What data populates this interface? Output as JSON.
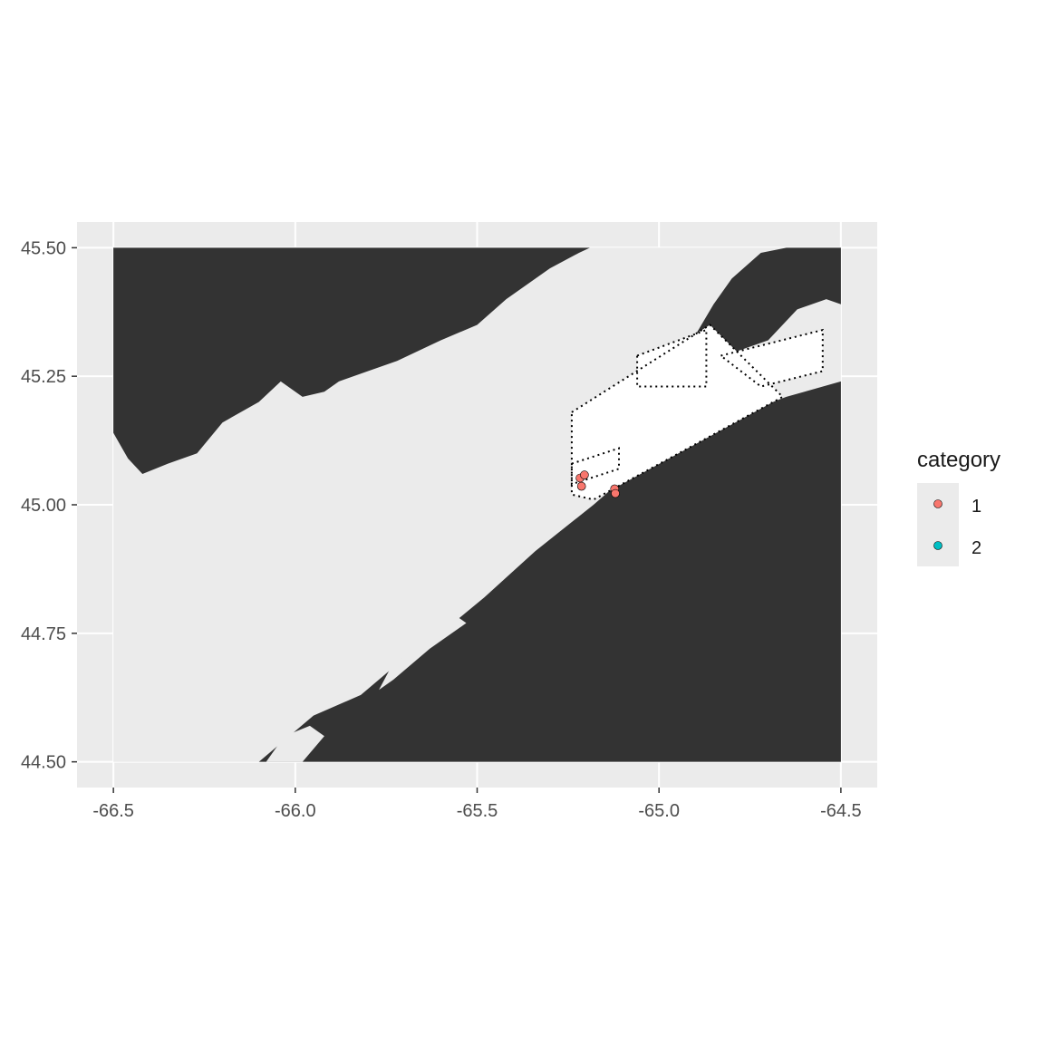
{
  "chart_data": {
    "type": "scatter",
    "subtype": "map",
    "title": "",
    "xlabel": "",
    "ylabel": "",
    "x_ticks": [
      -66.5,
      -66.0,
      -65.5,
      -65.0,
      -64.5
    ],
    "x_tick_labels": [
      "-66.5",
      "-66.0",
      "-65.5",
      "-65.0",
      "-64.5"
    ],
    "y_ticks": [
      44.5,
      44.75,
      45.0,
      45.25,
      45.5
    ],
    "y_tick_labels": [
      "44.50",
      "44.75",
      "45.00",
      "45.25",
      "45.50"
    ],
    "xlim": [
      -66.6,
      -64.4
    ],
    "ylim": [
      44.45,
      45.55
    ],
    "map_extent": {
      "lon": [
        -66.5,
        -64.5
      ],
      "lat": [
        44.5,
        45.5
      ]
    },
    "grid": true,
    "colors": {
      "panel_bg": "#ebebeb",
      "gridline": "#ffffff",
      "land": "#333333",
      "water": "#ebebeb",
      "zone_fill": "#ffffff",
      "zone_border": "#000000",
      "category_1": "#f8766d",
      "category_2": "#00bfc4"
    },
    "land_polygons": [
      {
        "name": "new-brunswick-coast",
        "coords": [
          [
            -66.5,
            45.5
          ],
          [
            -65.19,
            45.5
          ],
          [
            -65.22,
            45.49
          ],
          [
            -65.3,
            45.46
          ],
          [
            -65.42,
            45.4
          ],
          [
            -65.5,
            45.35
          ],
          [
            -65.6,
            45.32
          ],
          [
            -65.72,
            45.28
          ],
          [
            -65.8,
            45.26
          ],
          [
            -65.88,
            45.24
          ],
          [
            -65.92,
            45.22
          ],
          [
            -65.98,
            45.21
          ],
          [
            -66.04,
            45.24
          ],
          [
            -66.1,
            45.2
          ],
          [
            -66.2,
            45.16
          ],
          [
            -66.27,
            45.1
          ],
          [
            -66.35,
            45.08
          ],
          [
            -66.42,
            45.06
          ],
          [
            -66.46,
            45.09
          ],
          [
            -66.5,
            45.14
          ]
        ]
      },
      {
        "name": "nova-scotia-coast",
        "coords": [
          [
            -66.1,
            44.5
          ],
          [
            -65.95,
            44.59
          ],
          [
            -65.82,
            44.63
          ],
          [
            -65.72,
            44.69
          ],
          [
            -65.6,
            44.75
          ],
          [
            -65.48,
            44.82
          ],
          [
            -65.34,
            44.91
          ],
          [
            -65.18,
            45.0
          ],
          [
            -65.05,
            45.08
          ],
          [
            -64.96,
            45.12
          ],
          [
            -64.8,
            45.17
          ],
          [
            -64.65,
            45.21
          ],
          [
            -64.5,
            45.24
          ],
          [
            -64.5,
            44.5
          ]
        ]
      },
      {
        "name": "cape-chignecto",
        "coords": [
          [
            -64.95,
            45.28
          ],
          [
            -64.9,
            45.33
          ],
          [
            -64.85,
            45.39
          ],
          [
            -64.8,
            45.44
          ],
          [
            -64.72,
            45.49
          ],
          [
            -64.65,
            45.5
          ],
          [
            -64.5,
            45.5
          ],
          [
            -64.5,
            45.39
          ],
          [
            -64.54,
            45.4
          ],
          [
            -64.62,
            45.38
          ],
          [
            -64.7,
            45.32
          ],
          [
            -64.78,
            45.3
          ],
          [
            -64.82,
            45.28
          ],
          [
            -64.88,
            45.25
          ],
          [
            -64.92,
            45.25
          ]
        ]
      }
    ],
    "water_polygons": [
      {
        "name": "annapolis-basin",
        "coords": [
          [
            -65.77,
            44.64
          ],
          [
            -65.73,
            44.66
          ],
          [
            -65.63,
            44.72
          ],
          [
            -65.53,
            44.77
          ],
          [
            -65.55,
            44.78
          ],
          [
            -65.66,
            44.73
          ],
          [
            -65.74,
            44.68
          ]
        ]
      },
      {
        "name": "st-marys-bay",
        "coords": [
          [
            -66.08,
            44.5
          ],
          [
            -65.98,
            44.5
          ],
          [
            -65.92,
            44.55
          ],
          [
            -65.96,
            44.57
          ],
          [
            -66.03,
            44.55
          ]
        ]
      }
    ],
    "zones": [
      {
        "name": "zone-a",
        "coords": [
          [
            -65.24,
            45.18
          ],
          [
            -64.86,
            45.35
          ],
          [
            -64.66,
            45.21
          ],
          [
            -65.18,
            45.01
          ],
          [
            -65.24,
            45.02
          ]
        ]
      },
      {
        "name": "zone-b",
        "coords": [
          [
            -65.06,
            45.29
          ],
          [
            -64.87,
            45.34
          ],
          [
            -64.87,
            45.23
          ],
          [
            -65.06,
            45.23
          ]
        ]
      },
      {
        "name": "zone-c",
        "coords": [
          [
            -64.83,
            45.29
          ],
          [
            -64.55,
            45.34
          ],
          [
            -64.55,
            45.26
          ],
          [
            -64.72,
            45.23
          ]
        ]
      },
      {
        "name": "zone-d",
        "coords": [
          [
            -65.24,
            45.08
          ],
          [
            -65.11,
            45.11
          ],
          [
            -65.11,
            45.07
          ],
          [
            -65.24,
            45.04
          ]
        ]
      }
    ],
    "legend": {
      "title": "category",
      "position": "right",
      "items": [
        {
          "label": "1",
          "color": "#f8766d"
        },
        {
          "label": "2",
          "color": "#00bfc4"
        }
      ]
    },
    "points": [
      {
        "x": -65.217,
        "y": 45.052,
        "category": "1"
      },
      {
        "x": -65.205,
        "y": 45.058,
        "category": "1"
      },
      {
        "x": -65.213,
        "y": 45.036,
        "category": "1"
      },
      {
        "x": -65.122,
        "y": 45.031,
        "category": "1"
      },
      {
        "x": -65.12,
        "y": 45.022,
        "category": "1"
      }
    ]
  }
}
